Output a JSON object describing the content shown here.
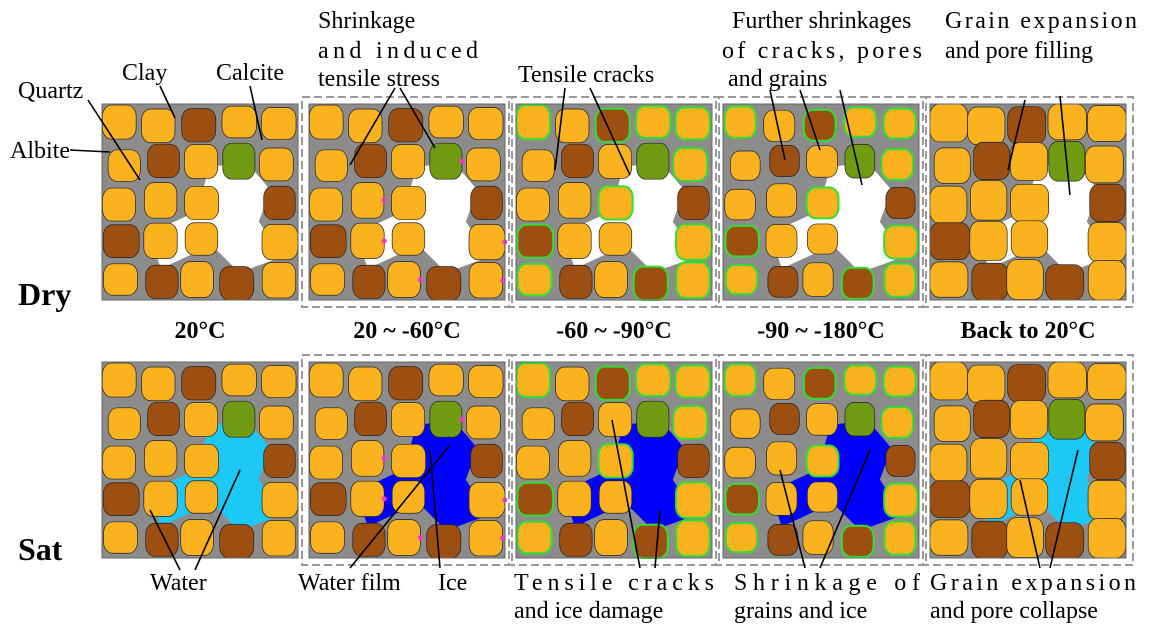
{
  "rows": [
    "Dry",
    "Sat"
  ],
  "temperatures": [
    "20°C",
    "20 ~ -60°C",
    "-60 ~ -90°C",
    "-90 ~ -180°C",
    "Back to 20°C"
  ],
  "minerals": [
    "Quartz",
    "Clay",
    "Calcite",
    "Albite"
  ],
  "dry_notes": [
    [
      "Shrinkage",
      "and induced",
      "tensile stress"
    ],
    [
      "Tensile cracks"
    ],
    [
      "Further shrinkages",
      "of cracks, pores",
      "and grains"
    ],
    [
      "Grain expansion",
      "and pore filling"
    ]
  ],
  "sat_notes": [
    [
      "Water"
    ],
    [
      "Water film"
    ],
    [
      "Ice"
    ],
    [
      "Tensile cracks",
      "and ice damage"
    ],
    [
      "Shrinkage of",
      "grains and ice"
    ],
    [
      "Grain expansion",
      "and pore collapse"
    ]
  ]
}
